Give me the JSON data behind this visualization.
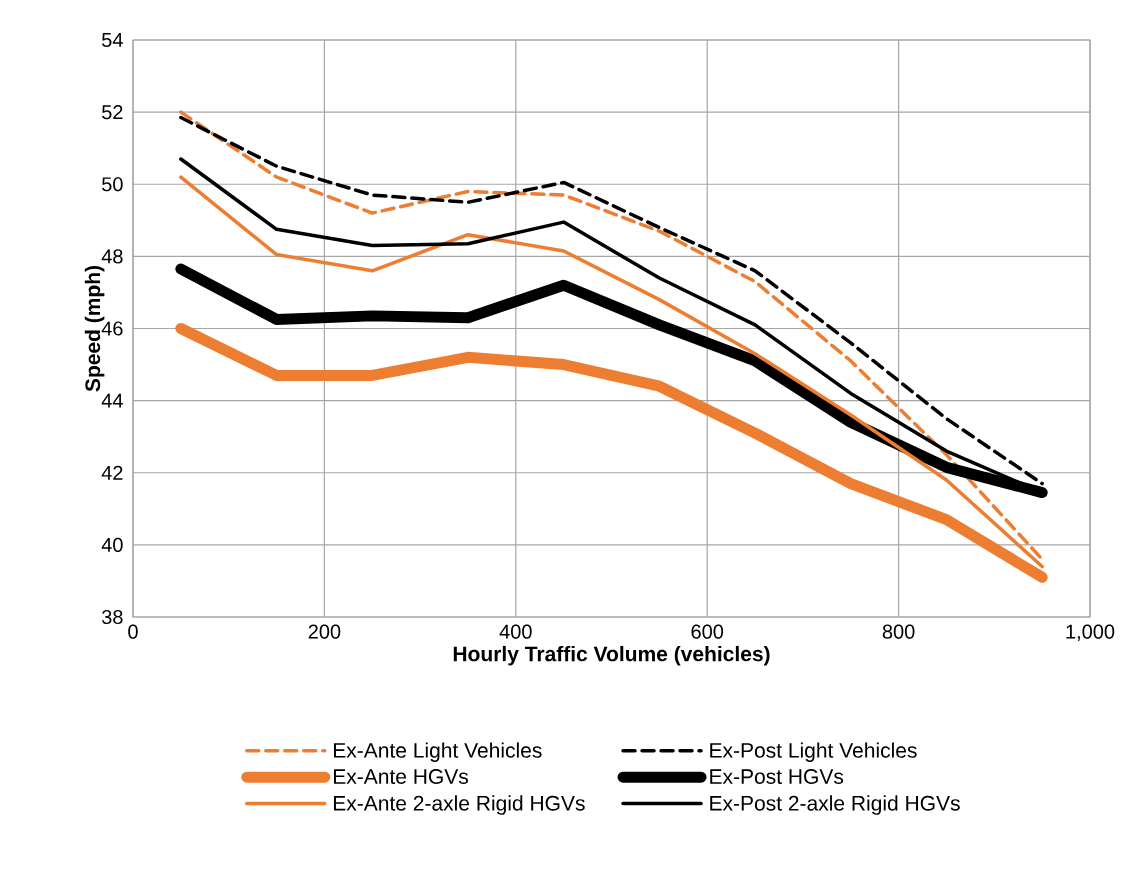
{
  "chart_data": {
    "type": "line",
    "xlabel": "Hourly Traffic Volume (vehicles)",
    "ylabel": "Speed (mph)",
    "x": [
      50,
      150,
      250,
      350,
      450,
      550,
      650,
      750,
      850,
      950
    ],
    "xlim": [
      0,
      1000
    ],
    "xticks": [
      0,
      200,
      400,
      600,
      800,
      {
        "value": 1000,
        "label": "1,000"
      }
    ],
    "ylim": [
      38,
      54
    ],
    "yticks": [
      38,
      40,
      42,
      44,
      46,
      48,
      50,
      52,
      54
    ],
    "grid": true,
    "legend": "bottom",
    "marker": "none",
    "series": [
      {
        "name": "Ex-Ante Light Vehicles",
        "color": "#ed7d31",
        "line_style": "dashed",
        "values": [
          52.0,
          50.2,
          49.2,
          49.8,
          49.7,
          48.7,
          47.3,
          45.1,
          42.5,
          39.6
        ]
      },
      {
        "name": "Ex-Post Light Vehicles",
        "color": "#000000",
        "line_style": "dashed",
        "values": [
          51.85,
          50.5,
          49.7,
          49.5,
          50.05,
          48.8,
          47.6,
          45.6,
          43.5,
          41.7
        ]
      },
      {
        "name": "Ex-Ante HGVs",
        "color": "#ed7d31",
        "line_style": "solid",
        "values": [
          46.0,
          44.7,
          44.7,
          45.2,
          45.0,
          44.4,
          43.1,
          41.7,
          40.7,
          39.1
        ]
      },
      {
        "name": "Ex-Post HGVs",
        "color": "#000000",
        "line_style": "solid",
        "values": [
          47.65,
          46.25,
          46.35,
          46.3,
          47.2,
          46.1,
          45.1,
          43.4,
          42.15,
          41.45
        ]
      },
      {
        "name": "Ex-Ante 2-axle Rigid HGVs",
        "color": "#ed7d31",
        "line_style": "solid",
        "values": [
          50.2,
          48.05,
          47.6,
          48.6,
          48.15,
          46.8,
          45.3,
          43.6,
          41.8,
          39.4
        ]
      },
      {
        "name": "Ex-Post 2-axle Rigid HGVs",
        "color": "#000000",
        "line_style": "solid",
        "values": [
          50.7,
          48.75,
          48.3,
          48.35,
          48.95,
          47.4,
          46.1,
          44.2,
          42.6,
          41.45
        ]
      }
    ]
  }
}
